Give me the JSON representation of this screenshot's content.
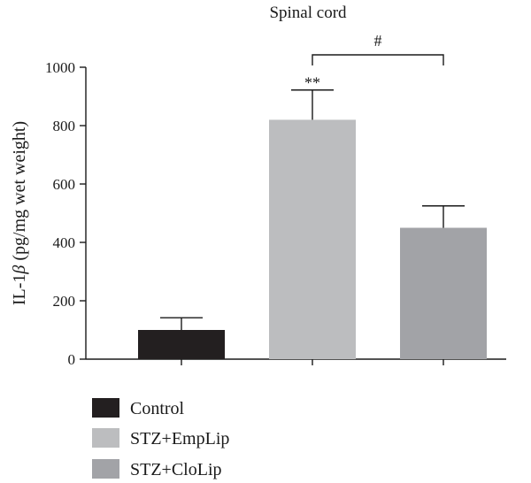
{
  "chart_data": {
    "type": "bar",
    "title": "Spinal cord",
    "ylabel_prefix": "IL-1",
    "ylabel_symbol": "β",
    "ylabel_suffix": " (pg/mg wet weight)",
    "xlabel": "",
    "ylim": [
      0,
      1000
    ],
    "yticks": [
      "0",
      "200",
      "400",
      "600",
      "800",
      "1000"
    ],
    "ytick_values": [
      0,
      200,
      400,
      600,
      800,
      1000
    ],
    "categories": [
      "Control",
      "STZ+EmpLip",
      "STZ+CloLip"
    ],
    "values": [
      100,
      820,
      450
    ],
    "errors": [
      42,
      102,
      75
    ],
    "colors": [
      "#231f20",
      "#bcbdbf",
      "#a2a3a7"
    ],
    "significance": [
      {
        "category": "STZ+EmpLip",
        "label": "**"
      }
    ],
    "brackets": [
      {
        "from": "STZ+EmpLip",
        "to": "STZ+CloLip",
        "label": "#"
      }
    ],
    "legend": {
      "placement": "bottom-left",
      "entries": [
        "Control",
        "STZ+EmpLip",
        "STZ+CloLip"
      ]
    },
    "grid": false
  }
}
